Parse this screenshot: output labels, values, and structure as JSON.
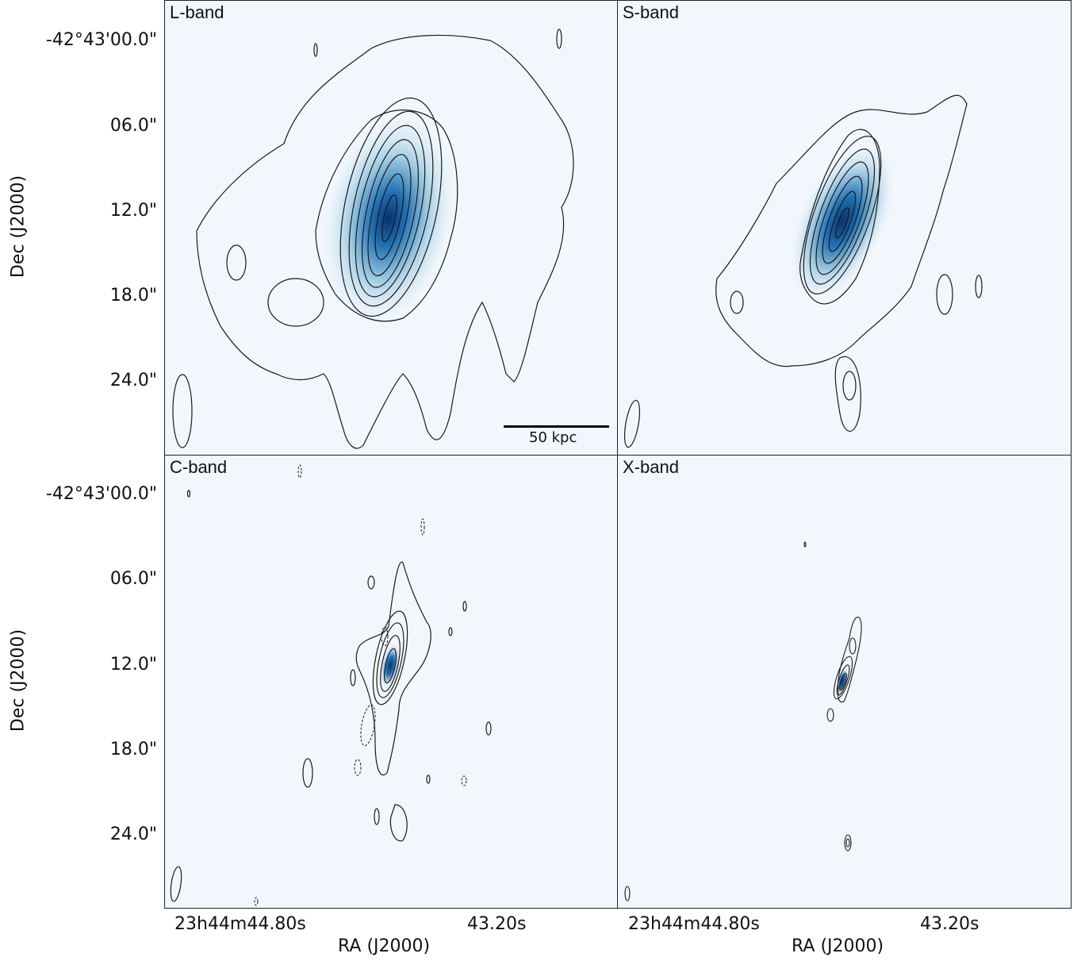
{
  "panels": [
    {
      "label": "L-band"
    },
    {
      "label": "S-band"
    },
    {
      "label": "C-band"
    },
    {
      "label": "X-band"
    }
  ],
  "axes": {
    "y_title": "Dec (J2000)",
    "x_title": "RA (J2000)",
    "y_ticks": [
      "-42°43'00.0\"",
      "06.0\"",
      "12.0\"",
      "18.0\"",
      "24.0\""
    ],
    "x_ticks": [
      "23h44m44.80s",
      "43.20s"
    ]
  },
  "scalebar": {
    "label": "50 kpc"
  },
  "colors": {
    "background": "#f2f7fd",
    "emission": "#08519c",
    "contour": "#1a1a1a"
  }
}
